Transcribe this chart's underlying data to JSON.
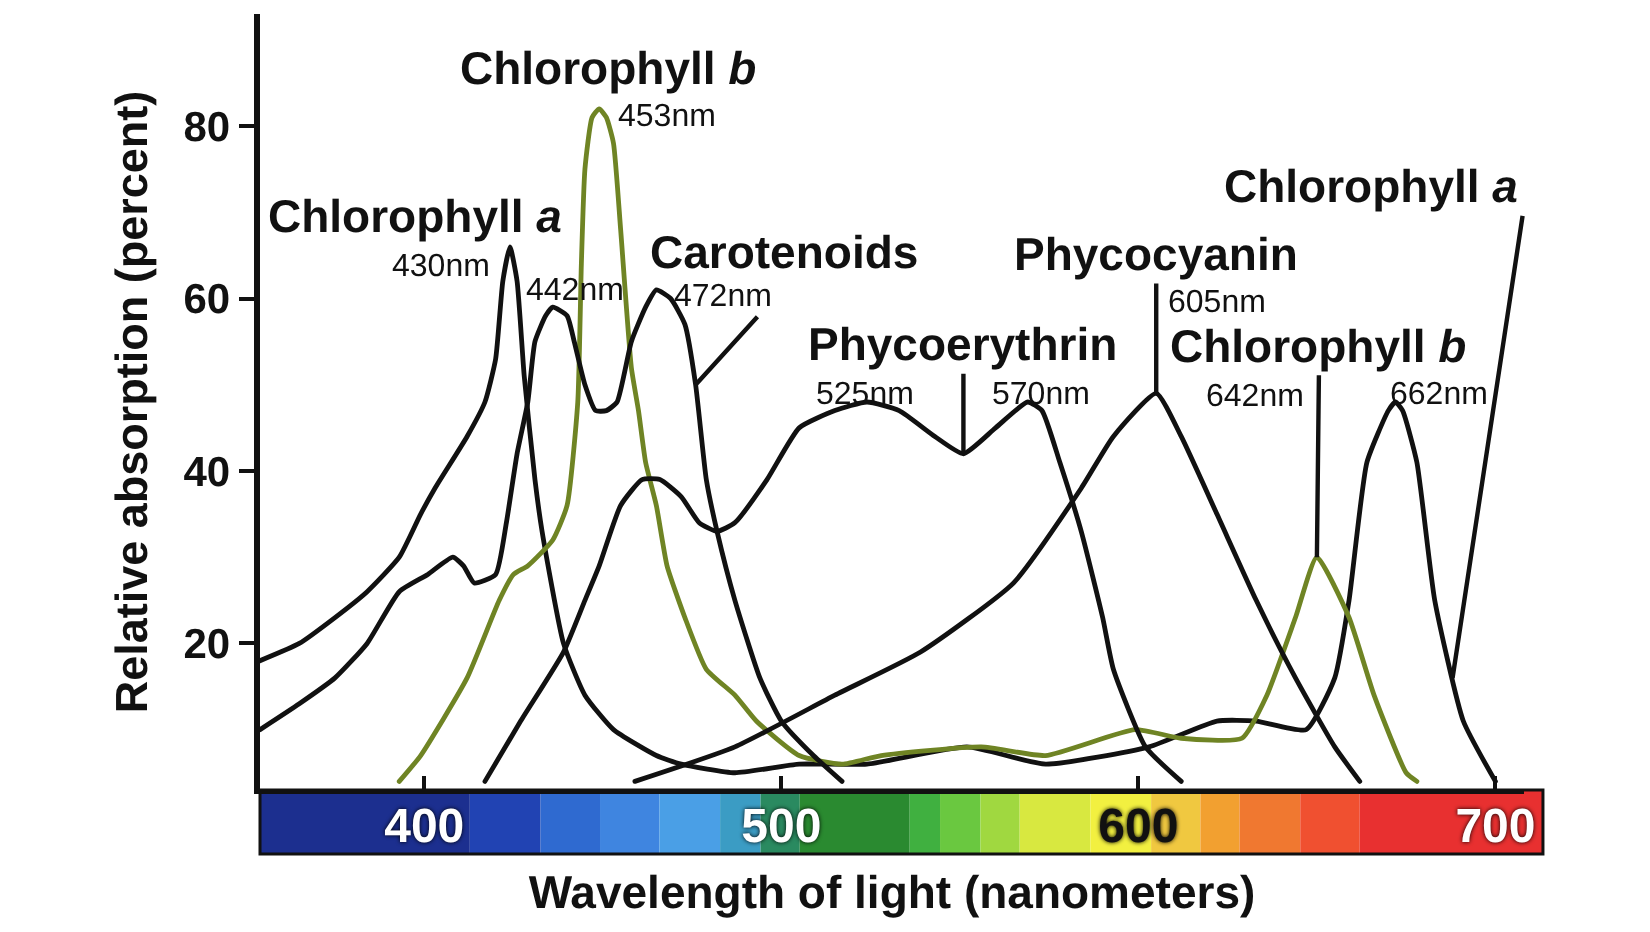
{
  "chart_data": {
    "type": "line",
    "xlabel": "Wavelength of light (nanometers)",
    "ylabel": "Relative absorption (percent)",
    "xlim": [
      354,
      708
    ],
    "xticks": [
      400,
      500,
      600,
      700
    ],
    "ylim": [
      3,
      93
    ],
    "yticks": [
      20,
      40,
      60,
      80
    ],
    "series": [
      {
        "color": "#111111",
        "x": [
          354,
          365,
          375,
          384,
          393,
          399,
          403,
          412,
          417,
          420,
          422,
          424,
          426,
          428,
          431,
          433,
          439,
          445,
          453,
          465,
          472,
          487,
          505,
          524,
          552,
          574,
          603,
          622,
          633,
          647,
          655,
          659,
          664,
          670,
          672,
          674,
          678,
          683,
          691,
          700
        ],
        "values": [
          18,
          20,
          23,
          26,
          30,
          35,
          38,
          44,
          48,
          53,
          62,
          66,
          62,
          51,
          39,
          33,
          20,
          14,
          10,
          7,
          6,
          5,
          6,
          6,
          8,
          6,
          8,
          11,
          11,
          10,
          16,
          25,
          41,
          47,
          48,
          47,
          41,
          25,
          11,
          4
        ]
      },
      {
        "color": "#6f8424",
        "x": [
          393,
          399,
          412,
          421,
          425,
          429,
          436,
          440,
          443,
          444,
          445,
          447,
          449,
          451,
          453,
          455,
          458,
          460,
          462,
          465,
          468,
          473,
          479,
          487,
          493,
          505,
          517,
          528,
          556,
          574,
          599,
          612,
          629,
          636,
          644,
          650,
          659,
          666,
          675,
          678
        ],
        "values": [
          4,
          7,
          16,
          25,
          28,
          29,
          32,
          36,
          48,
          64,
          75,
          81,
          82,
          81,
          78,
          68,
          52,
          47,
          41,
          36,
          29,
          23,
          17,
          14,
          11,
          7,
          6,
          7,
          8,
          7,
          10,
          9,
          9,
          14,
          23,
          30,
          23,
          14,
          5,
          4
        ]
      },
      {
        "color": "#111111",
        "x": [
          354,
          365,
          375,
          384,
          393,
          401,
          408,
          411,
          414,
          420,
          423,
          426,
          429,
          431,
          434,
          436,
          440,
          442,
          445,
          448,
          451,
          454,
          458,
          462,
          465,
          469,
          473,
          476,
          479,
          482,
          487,
          494,
          500,
          509,
          517
        ],
        "values": [
          10,
          13,
          16,
          20,
          26,
          28,
          30,
          29,
          27,
          28,
          34,
          42,
          48,
          55,
          58,
          59,
          58,
          55,
          50,
          47,
          47,
          48,
          55,
          59,
          61,
          60,
          57,
          50,
          39,
          33,
          25,
          16,
          11,
          7,
          4
        ]
      },
      {
        "color": "#111111",
        "x": [
          417,
          427,
          439,
          445,
          449,
          455,
          461,
          466,
          472,
          477,
          482,
          487,
          496,
          505,
          515,
          524,
          533,
          543,
          551,
          560,
          569,
          573,
          578,
          584,
          590,
          593,
          602,
          612
        ],
        "values": [
          4,
          11,
          19,
          25,
          29,
          36,
          39,
          39,
          37,
          34,
          33,
          34,
          39,
          45,
          47,
          48,
          47,
          44,
          42,
          45,
          48,
          47,
          41,
          33,
          23,
          17,
          8,
          4
        ]
      },
      {
        "color": "#111111",
        "x": [
          459,
          487,
          515,
          539,
          565,
          584,
          593,
          605,
          612,
          622,
          633,
          644,
          655,
          662
        ],
        "values": [
          4,
          8,
          14,
          19,
          27,
          38,
          44,
          49,
          44,
          35,
          25,
          16,
          8,
          4
        ]
      }
    ],
    "annotations": [
      {
        "text": "Chlorophyll a",
        "x": 424,
        "y": 66
      },
      {
        "text": "430nm",
        "x": 424,
        "y": 66
      },
      {
        "text": "442nm",
        "x": 436,
        "y": 59
      },
      {
        "text": "Chlorophyll b",
        "x": 449,
        "y": 82
      },
      {
        "text": "453nm",
        "x": 449,
        "y": 82
      },
      {
        "text": "Carotenoids",
        "x": 465,
        "y": 61
      },
      {
        "text": "472nm",
        "x": 476,
        "y": 50
      },
      {
        "text": "Phycoerythrin",
        "x": 551,
        "y": 42
      },
      {
        "text": "525nm",
        "x": 524,
        "y": 48
      },
      {
        "text": "570nm",
        "x": 569,
        "y": 48
      },
      {
        "text": "Phycocyanin",
        "x": 605,
        "y": 49
      },
      {
        "text": "605nm",
        "x": 605,
        "y": 49
      },
      {
        "text": "Chlorophyll b",
        "x": 650,
        "y": 30
      },
      {
        "text": "642nm",
        "x": 650,
        "y": 30
      },
      {
        "text": "Chlorophyll a",
        "x": 688,
        "y": 16
      },
      {
        "text": "662nm",
        "x": 672,
        "y": 48
      }
    ]
  }
}
